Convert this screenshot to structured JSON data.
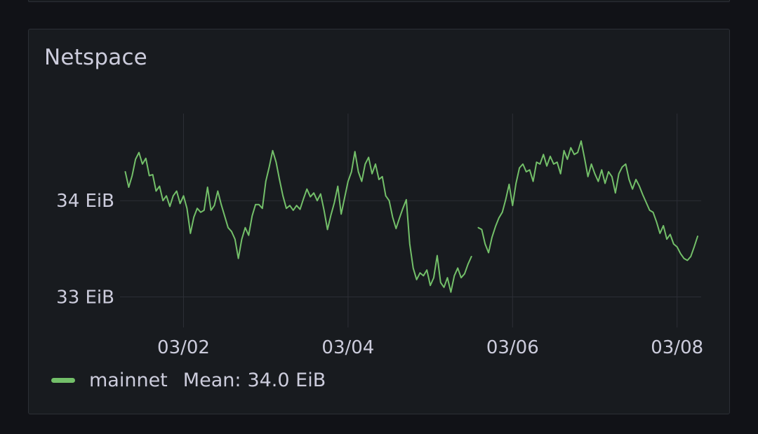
{
  "panel": {
    "title": "Netspace"
  },
  "legend": {
    "series_name": "mainnet",
    "stat_label": "Mean:",
    "stat_value": "34.0 EiB"
  },
  "colors": {
    "background": "#111217",
    "panel": "#181b1f",
    "series": "#73bf69",
    "grid": "#2c2f36",
    "text": "#ccccdc"
  },
  "chart_data": {
    "type": "line",
    "title": "Netspace",
    "xlabel": "",
    "ylabel": "",
    "y_unit": "EiB",
    "x_tick_labels": [
      "03/02",
      "03/04",
      "03/06",
      "03/08"
    ],
    "y_tick_labels": [
      "33 EiB",
      "34 EiB"
    ],
    "y_ticks": [
      33,
      34
    ],
    "xlim": [
      "03/01 07:00",
      "03/08 09:00"
    ],
    "ylim": [
      32.72,
      35.05
    ],
    "grid": true,
    "legend": "bottom-left",
    "series": [
      {
        "name": "mainnet",
        "color": "#73bf69",
        "mean": "34.0 EiB",
        "segments": [
          [
            [
              "03/01 07:00",
              34.3
            ],
            [
              "03/01 08:00",
              34.14
            ],
            [
              "03/01 09:00",
              34.26
            ],
            [
              "03/01 10:00",
              34.43
            ],
            [
              "03/01 11:00",
              34.5
            ],
            [
              "03/01 12:00",
              34.38
            ],
            [
              "03/01 13:00",
              34.44
            ],
            [
              "03/01 14:00",
              34.26
            ],
            [
              "03/01 15:00",
              34.27
            ],
            [
              "03/01 16:00",
              34.1
            ],
            [
              "03/01 17:00",
              34.15
            ],
            [
              "03/01 18:00",
              34.0
            ],
            [
              "03/01 19:00",
              34.05
            ],
            [
              "03/01 20:00",
              33.94
            ],
            [
              "03/01 21:00",
              34.05
            ],
            [
              "03/01 22:00",
              34.1
            ],
            [
              "03/01 23:00",
              33.97
            ],
            [
              "03/02 00:00",
              34.05
            ],
            [
              "03/02 01:00",
              33.92
            ],
            [
              "03/02 02:00",
              33.66
            ],
            [
              "03/02 03:00",
              33.83
            ],
            [
              "03/02 04:00",
              33.92
            ],
            [
              "03/02 05:00",
              33.88
            ],
            [
              "03/02 06:00",
              33.9
            ],
            [
              "03/02 07:00",
              34.14
            ],
            [
              "03/02 08:00",
              33.9
            ],
            [
              "03/02 09:00",
              33.95
            ],
            [
              "03/02 10:00",
              34.1
            ],
            [
              "03/02 11:00",
              33.96
            ],
            [
              "03/02 12:00",
              33.84
            ],
            [
              "03/02 13:00",
              33.72
            ],
            [
              "03/02 14:00",
              33.68
            ],
            [
              "03/02 15:00",
              33.6
            ],
            [
              "03/02 16:00",
              33.4
            ],
            [
              "03/02 17:00",
              33.6
            ],
            [
              "03/02 18:00",
              33.72
            ],
            [
              "03/02 19:00",
              33.64
            ],
            [
              "03/02 20:00",
              33.84
            ],
            [
              "03/02 21:00",
              33.96
            ],
            [
              "03/02 22:00",
              33.96
            ],
            [
              "03/02 23:00",
              33.92
            ],
            [
              "03/03 00:00",
              34.2
            ],
            [
              "03/03 01:00",
              34.35
            ],
            [
              "03/03 02:00",
              34.52
            ],
            [
              "03/03 03:00",
              34.4
            ],
            [
              "03/03 04:00",
              34.22
            ],
            [
              "03/03 05:00",
              34.05
            ],
            [
              "03/03 06:00",
              33.92
            ],
            [
              "03/03 07:00",
              33.95
            ],
            [
              "03/03 08:00",
              33.9
            ],
            [
              "03/03 09:00",
              33.95
            ],
            [
              "03/03 10:00",
              33.91
            ],
            [
              "03/03 11:00",
              34.02
            ],
            [
              "03/03 12:00",
              34.12
            ],
            [
              "03/03 13:00",
              34.04
            ],
            [
              "03/03 14:00",
              34.08
            ],
            [
              "03/03 15:00",
              34.0
            ],
            [
              "03/03 16:00",
              34.07
            ],
            [
              "03/03 17:00",
              33.9
            ],
            [
              "03/03 18:00",
              33.7
            ],
            [
              "03/03 19:00",
              33.85
            ],
            [
              "03/03 20:00",
              33.98
            ],
            [
              "03/03 21:00",
              34.15
            ],
            [
              "03/03 22:00",
              33.86
            ],
            [
              "03/03 23:00",
              34.03
            ],
            [
              "03/04 00:00",
              34.2
            ],
            [
              "03/04 01:00",
              34.3
            ],
            [
              "03/04 02:00",
              34.51
            ],
            [
              "03/04 03:00",
              34.3
            ],
            [
              "03/04 04:00",
              34.2
            ],
            [
              "03/04 05:00",
              34.38
            ],
            [
              "03/04 06:00",
              34.45
            ],
            [
              "03/04 07:00",
              34.28
            ],
            [
              "03/04 08:00",
              34.38
            ],
            [
              "03/04 09:00",
              34.22
            ],
            [
              "03/04 10:00",
              34.25
            ],
            [
              "03/04 11:00",
              34.05
            ],
            [
              "03/04 12:00",
              34.0
            ],
            [
              "03/04 13:00",
              33.83
            ],
            [
              "03/04 14:00",
              33.71
            ],
            [
              "03/04 15:00",
              33.82
            ],
            [
              "03/04 16:00",
              33.92
            ],
            [
              "03/04 17:00",
              34.01
            ],
            [
              "03/04 18:00",
              33.55
            ],
            [
              "03/04 19:00",
              33.3
            ],
            [
              "03/04 20:00",
              33.18
            ],
            [
              "03/04 21:00",
              33.25
            ],
            [
              "03/04 22:00",
              33.22
            ],
            [
              "03/04 23:00",
              33.28
            ],
            [
              "03/05 00:00",
              33.12
            ],
            [
              "03/05 01:00",
              33.2
            ],
            [
              "03/05 02:00",
              33.43
            ],
            [
              "03/05 03:00",
              33.15
            ],
            [
              "03/05 04:00",
              33.1
            ],
            [
              "03/05 05:00",
              33.2
            ],
            [
              "03/05 06:00",
              33.05
            ],
            [
              "03/05 07:00",
              33.22
            ],
            [
              "03/05 08:00",
              33.3
            ],
            [
              "03/05 09:00",
              33.2
            ],
            [
              "03/05 10:00",
              33.24
            ],
            [
              "03/05 11:00",
              33.34
            ],
            [
              "03/05 12:00",
              33.42
            ]
          ],
          [
            [
              "03/05 14:00",
              33.72
            ],
            [
              "03/05 15:00",
              33.7
            ],
            [
              "03/05 16:00",
              33.55
            ],
            [
              "03/05 17:00",
              33.46
            ],
            [
              "03/05 18:00",
              33.62
            ],
            [
              "03/05 19:00",
              33.73
            ],
            [
              "03/05 20:00",
              33.82
            ],
            [
              "03/05 21:00",
              33.88
            ],
            [
              "03/05 22:00",
              34.01
            ],
            [
              "03/05 23:00",
              34.17
            ],
            [
              "03/06 00:00",
              33.95
            ],
            [
              "03/06 01:00",
              34.18
            ],
            [
              "03/06 02:00",
              34.34
            ],
            [
              "03/06 03:00",
              34.38
            ],
            [
              "03/06 04:00",
              34.3
            ],
            [
              "03/06 05:00",
              34.32
            ],
            [
              "03/06 06:00",
              34.2
            ],
            [
              "03/06 07:00",
              34.4
            ],
            [
              "03/06 08:00",
              34.38
            ],
            [
              "03/06 09:00",
              34.48
            ],
            [
              "03/06 10:00",
              34.36
            ],
            [
              "03/06 11:00",
              34.46
            ],
            [
              "03/06 12:00",
              34.38
            ],
            [
              "03/06 13:00",
              34.4
            ],
            [
              "03/06 14:00",
              34.28
            ],
            [
              "03/06 15:00",
              34.52
            ],
            [
              "03/06 16:00",
              34.43
            ],
            [
              "03/06 17:00",
              34.55
            ],
            [
              "03/06 18:00",
              34.48
            ],
            [
              "03/06 19:00",
              34.5
            ],
            [
              "03/06 20:00",
              34.62
            ],
            [
              "03/06 21:00",
              34.44
            ],
            [
              "03/06 22:00",
              34.25
            ],
            [
              "03/06 23:00",
              34.38
            ],
            [
              "03/07 00:00",
              34.28
            ],
            [
              "03/07 01:00",
              34.2
            ],
            [
              "03/07 02:00",
              34.32
            ],
            [
              "03/07 03:00",
              34.18
            ],
            [
              "03/07 04:00",
              34.3
            ],
            [
              "03/07 05:00",
              34.25
            ],
            [
              "03/07 06:00",
              34.08
            ],
            [
              "03/07 07:00",
              34.28
            ],
            [
              "03/07 08:00",
              34.35
            ],
            [
              "03/07 09:00",
              34.38
            ],
            [
              "03/07 10:00",
              34.22
            ],
            [
              "03/07 11:00",
              34.12
            ],
            [
              "03/07 12:00",
              34.22
            ],
            [
              "03/07 13:00",
              34.15
            ],
            [
              "03/07 14:00",
              34.06
            ],
            [
              "03/07 15:00",
              33.98
            ],
            [
              "03/07 16:00",
              33.9
            ],
            [
              "03/07 17:00",
              33.88
            ],
            [
              "03/07 18:00",
              33.78
            ],
            [
              "03/07 19:00",
              33.66
            ],
            [
              "03/07 20:00",
              33.74
            ],
            [
              "03/07 21:00",
              33.6
            ],
            [
              "03/07 22:00",
              33.65
            ],
            [
              "03/07 23:00",
              33.55
            ],
            [
              "03/08 00:00",
              33.52
            ],
            [
              "03/08 01:00",
              33.45
            ],
            [
              "03/08 02:00",
              33.4
            ],
            [
              "03/08 03:00",
              33.38
            ],
            [
              "03/08 04:00",
              33.42
            ],
            [
              "03/08 05:00",
              33.52
            ],
            [
              "03/08 06:00",
              33.63
            ]
          ]
        ]
      }
    ]
  }
}
